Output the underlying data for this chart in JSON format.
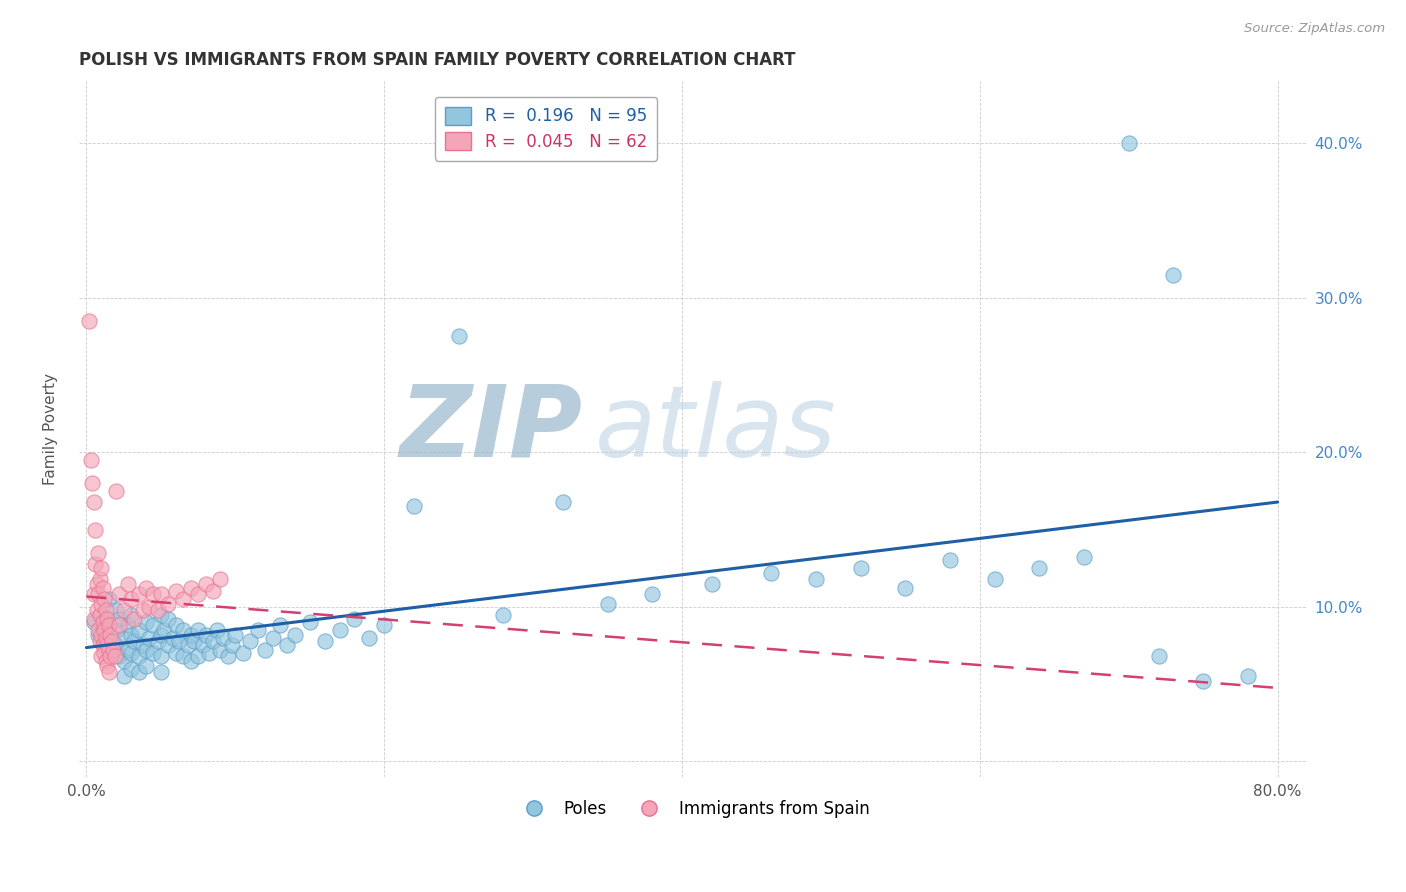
{
  "title": "POLISH VS IMMIGRANTS FROM SPAIN FAMILY POVERTY CORRELATION CHART",
  "source_text": "Source: ZipAtlas.com",
  "ylabel": "Family Poverty",
  "xlim": [
    -0.005,
    0.82
  ],
  "ylim": [
    -0.01,
    0.44
  ],
  "xticks": [
    0.0,
    0.2,
    0.4,
    0.6,
    0.8
  ],
  "xticklabels": [
    "0.0%",
    "",
    "",
    "",
    "80.0%"
  ],
  "yticks": [
    0.0,
    0.1,
    0.2,
    0.3,
    0.4
  ],
  "ylabels_left": [
    "",
    "",
    "",
    "",
    ""
  ],
  "ylabels_right": [
    "",
    "10.0%",
    "20.0%",
    "30.0%",
    "40.0%"
  ],
  "poles_color": "#92c5de",
  "spain_color": "#f4a6b8",
  "poles_edge_color": "#5b9ec9",
  "spain_edge_color": "#e87090",
  "trendline_poles_color": "#1f5fa6",
  "trendline_spain_color": "#d44070",
  "watermark_zip": "ZIP",
  "watermark_atlas": "atlas",
  "watermark_zip_color": "#9bb8cc",
  "watermark_atlas_color": "#b8cfe0",
  "poles_scatter": [
    [
      0.005,
      0.09
    ],
    [
      0.008,
      0.082
    ],
    [
      0.01,
      0.095
    ],
    [
      0.012,
      0.078
    ],
    [
      0.015,
      0.105
    ],
    [
      0.015,
      0.088
    ],
    [
      0.018,
      0.072
    ],
    [
      0.02,
      0.098
    ],
    [
      0.02,
      0.085
    ],
    [
      0.02,
      0.075
    ],
    [
      0.022,
      0.092
    ],
    [
      0.022,
      0.068
    ],
    [
      0.025,
      0.08
    ],
    [
      0.025,
      0.065
    ],
    [
      0.025,
      0.055
    ],
    [
      0.028,
      0.088
    ],
    [
      0.028,
      0.072
    ],
    [
      0.03,
      0.095
    ],
    [
      0.03,
      0.082
    ],
    [
      0.03,
      0.07
    ],
    [
      0.03,
      0.06
    ],
    [
      0.032,
      0.078
    ],
    [
      0.035,
      0.085
    ],
    [
      0.035,
      0.068
    ],
    [
      0.035,
      0.058
    ],
    [
      0.038,
      0.075
    ],
    [
      0.04,
      0.09
    ],
    [
      0.04,
      0.072
    ],
    [
      0.04,
      0.062
    ],
    [
      0.042,
      0.08
    ],
    [
      0.045,
      0.088
    ],
    [
      0.045,
      0.07
    ],
    [
      0.048,
      0.078
    ],
    [
      0.05,
      0.095
    ],
    [
      0.05,
      0.082
    ],
    [
      0.05,
      0.068
    ],
    [
      0.05,
      0.058
    ],
    [
      0.052,
      0.085
    ],
    [
      0.055,
      0.092
    ],
    [
      0.055,
      0.075
    ],
    [
      0.058,
      0.08
    ],
    [
      0.06,
      0.088
    ],
    [
      0.06,
      0.07
    ],
    [
      0.062,
      0.078
    ],
    [
      0.065,
      0.085
    ],
    [
      0.065,
      0.068
    ],
    [
      0.068,
      0.075
    ],
    [
      0.07,
      0.082
    ],
    [
      0.07,
      0.065
    ],
    [
      0.072,
      0.078
    ],
    [
      0.075,
      0.085
    ],
    [
      0.075,
      0.068
    ],
    [
      0.078,
      0.075
    ],
    [
      0.08,
      0.082
    ],
    [
      0.082,
      0.07
    ],
    [
      0.085,
      0.078
    ],
    [
      0.088,
      0.085
    ],
    [
      0.09,
      0.072
    ],
    [
      0.092,
      0.08
    ],
    [
      0.095,
      0.068
    ],
    [
      0.098,
      0.075
    ],
    [
      0.1,
      0.082
    ],
    [
      0.105,
      0.07
    ],
    [
      0.11,
      0.078
    ],
    [
      0.115,
      0.085
    ],
    [
      0.12,
      0.072
    ],
    [
      0.125,
      0.08
    ],
    [
      0.13,
      0.088
    ],
    [
      0.135,
      0.075
    ],
    [
      0.14,
      0.082
    ],
    [
      0.15,
      0.09
    ],
    [
      0.16,
      0.078
    ],
    [
      0.17,
      0.085
    ],
    [
      0.18,
      0.092
    ],
    [
      0.19,
      0.08
    ],
    [
      0.2,
      0.088
    ],
    [
      0.22,
      0.165
    ],
    [
      0.25,
      0.275
    ],
    [
      0.28,
      0.095
    ],
    [
      0.32,
      0.168
    ],
    [
      0.35,
      0.102
    ],
    [
      0.38,
      0.108
    ],
    [
      0.42,
      0.115
    ],
    [
      0.46,
      0.122
    ],
    [
      0.49,
      0.118
    ],
    [
      0.52,
      0.125
    ],
    [
      0.55,
      0.112
    ],
    [
      0.58,
      0.13
    ],
    [
      0.61,
      0.118
    ],
    [
      0.64,
      0.125
    ],
    [
      0.67,
      0.132
    ],
    [
      0.7,
      0.4
    ],
    [
      0.72,
      0.068
    ],
    [
      0.73,
      0.315
    ],
    [
      0.75,
      0.052
    ],
    [
      0.78,
      0.055
    ]
  ],
  "spain_scatter": [
    [
      0.002,
      0.285
    ],
    [
      0.003,
      0.195
    ],
    [
      0.004,
      0.18
    ],
    [
      0.005,
      0.168
    ],
    [
      0.005,
      0.108
    ],
    [
      0.005,
      0.092
    ],
    [
      0.006,
      0.15
    ],
    [
      0.006,
      0.128
    ],
    [
      0.007,
      0.115
    ],
    [
      0.007,
      0.098
    ],
    [
      0.008,
      0.135
    ],
    [
      0.008,
      0.108
    ],
    [
      0.008,
      0.085
    ],
    [
      0.009,
      0.118
    ],
    [
      0.009,
      0.095
    ],
    [
      0.009,
      0.078
    ],
    [
      0.01,
      0.125
    ],
    [
      0.01,
      0.102
    ],
    [
      0.01,
      0.082
    ],
    [
      0.01,
      0.068
    ],
    [
      0.011,
      0.112
    ],
    [
      0.011,
      0.09
    ],
    [
      0.011,
      0.075
    ],
    [
      0.012,
      0.105
    ],
    [
      0.012,
      0.085
    ],
    [
      0.012,
      0.07
    ],
    [
      0.013,
      0.098
    ],
    [
      0.013,
      0.08
    ],
    [
      0.013,
      0.065
    ],
    [
      0.014,
      0.092
    ],
    [
      0.014,
      0.075
    ],
    [
      0.014,
      0.062
    ],
    [
      0.015,
      0.088
    ],
    [
      0.015,
      0.072
    ],
    [
      0.015,
      0.058
    ],
    [
      0.016,
      0.082
    ],
    [
      0.016,
      0.068
    ],
    [
      0.017,
      0.078
    ],
    [
      0.018,
      0.072
    ],
    [
      0.019,
      0.068
    ],
    [
      0.02,
      0.175
    ],
    [
      0.022,
      0.088
    ],
    [
      0.022,
      0.108
    ],
    [
      0.025,
      0.098
    ],
    [
      0.028,
      0.115
    ],
    [
      0.03,
      0.105
    ],
    [
      0.032,
      0.092
    ],
    [
      0.035,
      0.108
    ],
    [
      0.038,
      0.098
    ],
    [
      0.04,
      0.112
    ],
    [
      0.042,
      0.1
    ],
    [
      0.045,
      0.108
    ],
    [
      0.048,
      0.098
    ],
    [
      0.05,
      0.108
    ],
    [
      0.055,
      0.102
    ],
    [
      0.06,
      0.11
    ],
    [
      0.065,
      0.105
    ],
    [
      0.07,
      0.112
    ],
    [
      0.075,
      0.108
    ],
    [
      0.08,
      0.115
    ],
    [
      0.085,
      0.11
    ],
    [
      0.09,
      0.118
    ]
  ]
}
